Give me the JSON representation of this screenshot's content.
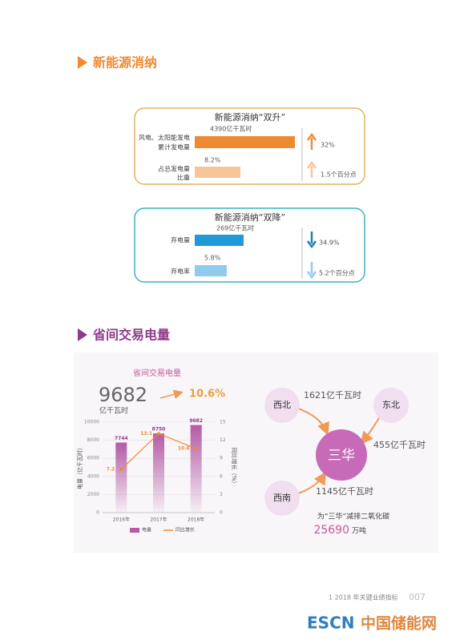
{
  "section1": {
    "title": "新能源消纳",
    "box_up": {
      "title": "新能源消纳“双升”",
      "rows": [
        {
          "label": [
            "风电、太阳能发电",
            "累计发电量"
          ],
          "value": "4390亿千瓦时",
          "change": "32%"
        },
        {
          "label": [
            "占总发电量",
            "比重"
          ],
          "value": "8.2%",
          "change": "1.5个百分点"
        }
      ]
    },
    "box_down": {
      "title": "新能源消纳“双降”",
      "rows": [
        {
          "label": [
            "弃电量"
          ],
          "value": "269亿千瓦时",
          "change": "34.9%"
        },
        {
          "label": [
            "弃电率"
          ],
          "value": "5.8%",
          "change": "5.2个百分点"
        }
      ]
    }
  },
  "section2": {
    "title": "省间交易电量",
    "chart": {
      "type": "bar",
      "title": "省间交易电量",
      "total": "9682",
      "unit": "亿千瓦时",
      "growth": "10.6%",
      "categories": [
        "2016年",
        "2017年",
        "2018年"
      ],
      "series": [
        {
          "name": "电量",
          "color": "#b45aa6",
          "values": [
            7744,
            8750,
            9682
          ]
        },
        {
          "name": "同比增长",
          "color": "#ef8a32",
          "axis": "y2",
          "values": [
            7.2,
            13.1,
            10.6
          ]
        }
      ],
      "ylabel": "电量（亿千瓦时）",
      "y2label": "同比增长（%）",
      "ylim": [
        0,
        10000
      ],
      "yticks": [
        0,
        2000,
        4000,
        6000,
        8000,
        10000
      ],
      "y2lim": [
        0,
        15
      ],
      "y2ticks": [
        0,
        3,
        6,
        9,
        12,
        15
      ]
    },
    "flows": {
      "nodes": [
        "西北",
        "东北",
        "西南",
        "三华"
      ],
      "edges": [
        "1621亿千瓦时",
        "455亿千瓦时",
        "1145亿千瓦时"
      ],
      "note": "为“三华”减排二氧化碳",
      "reduction": "25690",
      "reduction_unit": "万吨"
    }
  },
  "footer": {
    "caption": "1   2018 年关键业绩指标",
    "page": "007",
    "watermark": [
      "ESCN",
      "中国储能网"
    ]
  }
}
